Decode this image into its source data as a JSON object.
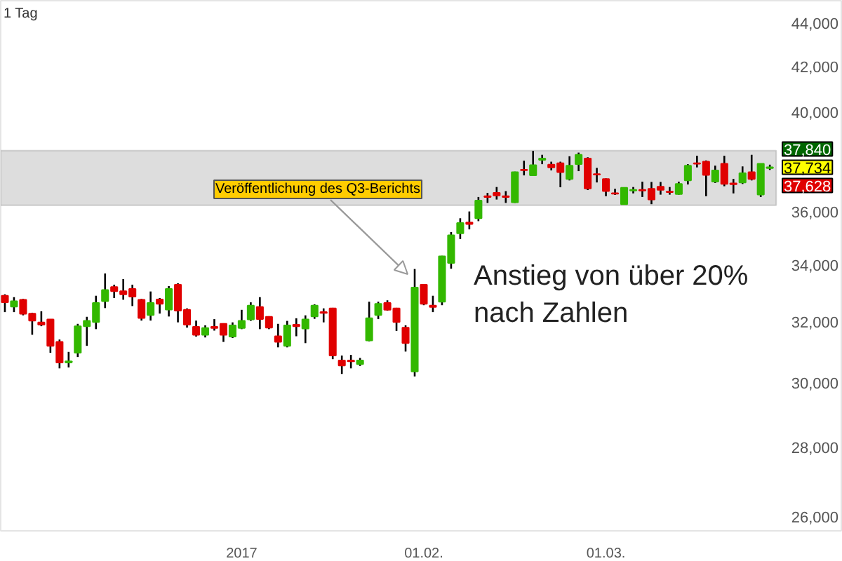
{
  "chart_data": {
    "type": "candlestick",
    "subtitle": "1 Tag",
    "categories": [
      null,
      null,
      null,
      null,
      null,
      null,
      null,
      null,
      null,
      null,
      null,
      null,
      null,
      null,
      null,
      null,
      null,
      null,
      null,
      null,
      null,
      null,
      null,
      null,
      null,
      null,
      "2017",
      null,
      null,
      null,
      null,
      null,
      null,
      null,
      null,
      null,
      null,
      null,
      null,
      null,
      null,
      null,
      null,
      null,
      null,
      null,
      "01.02.",
      null,
      null,
      null,
      null,
      null,
      null,
      null,
      null,
      null,
      null,
      null,
      null,
      null,
      null,
      null,
      null,
      null,
      null,
      null,
      "01.03.",
      null,
      null,
      null,
      null,
      null,
      null,
      null,
      null,
      null,
      null,
      null,
      null,
      null,
      null,
      null,
      null,
      null,
      null
    ],
    "ohlc": [
      [
        32910,
        32960,
        32340,
        32680
      ],
      [
        32530,
        32860,
        32340,
        32720
      ],
      [
        32770,
        32800,
        32230,
        32280
      ],
      [
        32290,
        32320,
        31570,
        32050
      ],
      [
        31990,
        32370,
        31860,
        31910
      ],
      [
        32090,
        32090,
        30970,
        31200
      ],
      [
        31330,
        31410,
        30460,
        30650
      ],
      [
        30650,
        31000,
        30490,
        30690
      ],
      [
        30970,
        31940,
        30830,
        31860
      ],
      [
        31860,
        32180,
        31200,
        32040
      ],
      [
        32000,
        32910,
        31760,
        32660
      ],
      [
        32720,
        33700,
        32480,
        33110
      ],
      [
        33220,
        33300,
        32830,
        33070
      ],
      [
        33070,
        33500,
        32770,
        32960
      ],
      [
        33150,
        33300,
        32550,
        32880
      ],
      [
        32770,
        32800,
        32050,
        32140
      ],
      [
        32240,
        33060,
        32050,
        32660
      ],
      [
        32780,
        32830,
        32290,
        32630
      ],
      [
        32430,
        33250,
        32190,
        33150
      ],
      [
        33300,
        33350,
        31990,
        32390
      ],
      [
        32420,
        32470,
        31810,
        31910
      ],
      [
        31840,
        32050,
        31510,
        31570
      ],
      [
        31570,
        31890,
        31480,
        31800
      ],
      [
        31840,
        32100,
        31710,
        31800
      ],
      [
        31940,
        31960,
        31330,
        31570
      ],
      [
        31510,
        31990,
        31460,
        31890
      ],
      [
        31800,
        32420,
        31760,
        32040
      ],
      [
        32090,
        32680,
        32040,
        32570
      ],
      [
        32520,
        32860,
        31760,
        32100
      ],
      [
        32180,
        32200,
        31760,
        31810
      ],
      [
        31520,
        31940,
        31150,
        31330
      ],
      [
        31200,
        32040,
        31150,
        31890
      ],
      [
        31910,
        32130,
        31520,
        31860
      ],
      [
        31780,
        32230,
        31290,
        32090
      ],
      [
        32190,
        32610,
        32110,
        32570
      ],
      [
        32340,
        32470,
        31990,
        32310
      ],
      [
        32470,
        32490,
        30760,
        30880
      ],
      [
        30720,
        30880,
        30280,
        30550
      ],
      [
        30720,
        30900,
        30460,
        30690
      ],
      [
        30600,
        30800,
        30540,
        30720
      ],
      [
        31380,
        32700,
        31350,
        32130
      ],
      [
        32240,
        32700,
        32100,
        32630
      ],
      [
        32660,
        32750,
        32390,
        32420
      ],
      [
        32470,
        32490,
        31700,
        32000
      ],
      [
        31810,
        31890,
        31010,
        31290
      ],
      [
        30360,
        33860,
        30200,
        33200
      ],
      [
        33300,
        33320,
        32580,
        32630
      ],
      [
        32570,
        32910,
        32340,
        32520
      ],
      [
        32700,
        34340,
        32580,
        34320
      ],
      [
        34080,
        35220,
        33870,
        35100
      ],
      [
        35170,
        35740,
        34960,
        35560
      ],
      [
        35580,
        36000,
        35320,
        35520
      ],
      [
        35740,
        36560,
        35630,
        36420
      ],
      [
        36590,
        36720,
        36330,
        36560
      ],
      [
        36720,
        36950,
        36460,
        36620
      ],
      [
        36590,
        36790,
        36330,
        36560
      ],
      [
        36350,
        37560,
        36330,
        37540
      ],
      [
        37640,
        38000,
        37410,
        37620
      ],
      [
        37410,
        38400,
        37390,
        37820
      ],
      [
        38030,
        38240,
        37860,
        38090
      ],
      [
        37840,
        37960,
        37610,
        37730
      ],
      [
        37900,
        37960,
        36940,
        37540
      ],
      [
        37270,
        38180,
        37210,
        37800
      ],
      [
        37860,
        38330,
        37580,
        38240
      ],
      [
        38090,
        38140,
        36830,
        36890
      ],
      [
        37460,
        37710,
        37130,
        37440
      ],
      [
        37270,
        37290,
        36590,
        36790
      ],
      [
        36710,
        36880,
        36640,
        36690
      ],
      [
        36280,
        36940,
        36260,
        36920
      ],
      [
        36810,
        36950,
        36700,
        36840
      ],
      [
        36840,
        37160,
        36560,
        36810
      ],
      [
        36880,
        37150,
        36280,
        36460
      ],
      [
        36960,
        37150,
        36650,
        36840
      ],
      [
        36770,
        36950,
        36650,
        36750
      ],
      [
        36670,
        37160,
        36650,
        37070
      ],
      [
        37210,
        37860,
        37050,
        37800
      ],
      [
        37900,
        38200,
        37730,
        37880
      ],
      [
        37960,
        38010,
        36590,
        37430
      ],
      [
        37160,
        37800,
        37110,
        37610
      ],
      [
        37880,
        38200,
        36980,
        37070
      ],
      [
        37090,
        37270,
        36700,
        37060
      ],
      [
        37130,
        37770,
        37070,
        37500
      ],
      [
        37540,
        38240,
        37210,
        37270
      ],
      [
        36650,
        37880,
        36560,
        37880
      ],
      [
        37700,
        37840,
        37628,
        37734
      ]
    ],
    "colors": [
      "#e00000",
      "#33b800",
      "#e00000",
      "#e00000",
      "#e00000",
      "#e00000",
      "#e00000",
      "#33b800",
      "#33b800",
      "#33b800",
      "#33b800",
      "#33b800",
      "#e00000",
      "#e00000",
      "#e00000",
      "#e00000",
      "#33b800",
      "#e00000",
      "#33b800",
      "#e00000",
      "#e00000",
      "#e00000",
      "#33b800",
      "#e00000",
      "#e00000",
      "#33b800",
      "#33b800",
      "#33b800",
      "#e00000",
      "#e00000",
      "#e00000",
      "#33b800",
      "#e00000",
      "#33b800",
      "#33b800",
      "#e00000",
      "#e00000",
      "#e00000",
      "#e00000",
      "#33b800",
      "#33b800",
      "#33b800",
      "#e00000",
      "#e00000",
      "#e00000",
      "#33b800",
      "#e00000",
      "#e00000",
      "#33b800",
      "#33b800",
      "#33b800",
      "#e00000",
      "#33b800",
      "#e00000",
      "#e00000",
      "#e00000",
      "#33b800",
      "#e00000",
      "#33b800",
      "#33b800",
      "#e00000",
      "#e00000",
      "#33b800",
      "#33b800",
      "#e00000",
      "#e00000",
      "#e00000",
      "#e00000",
      "#33b800",
      "#33b800",
      "#e00000",
      "#e00000",
      "#e00000",
      "#e00000",
      "#33b800",
      "#33b800",
      "#e00000",
      "#e00000",
      "#33b800",
      "#e00000",
      "#e00000",
      "#33b800",
      "#e00000",
      "#33b800",
      "#33b800"
    ],
    "log": "y",
    "ylim": [
      25620,
      45060
    ],
    "yticks": [
      {
        "value": 26000,
        "label": "26,000"
      },
      {
        "value": 28000,
        "label": "28,000"
      },
      {
        "value": 30000,
        "label": "30,000"
      },
      {
        "value": 32000,
        "label": "32,000"
      },
      {
        "value": 34000,
        "label": "34,000"
      },
      {
        "value": 36000,
        "label": "36,000"
      },
      {
        "value": 40000,
        "label": "40,000"
      },
      {
        "value": 42000,
        "label": "42,000"
      },
      {
        "value": 44000,
        "label": "44,000"
      }
    ],
    "bands": [
      {
        "axis": "y",
        "from": 36240,
        "to": 38410,
        "color": "#dddddd"
      }
    ],
    "grid": false,
    "annotations": [
      "Veröffentlichung des Q3-Berichts",
      "Anstieg von über 20%\nnach Zahlen",
      "37,840",
      "37,734",
      "37,628"
    ]
  }
}
